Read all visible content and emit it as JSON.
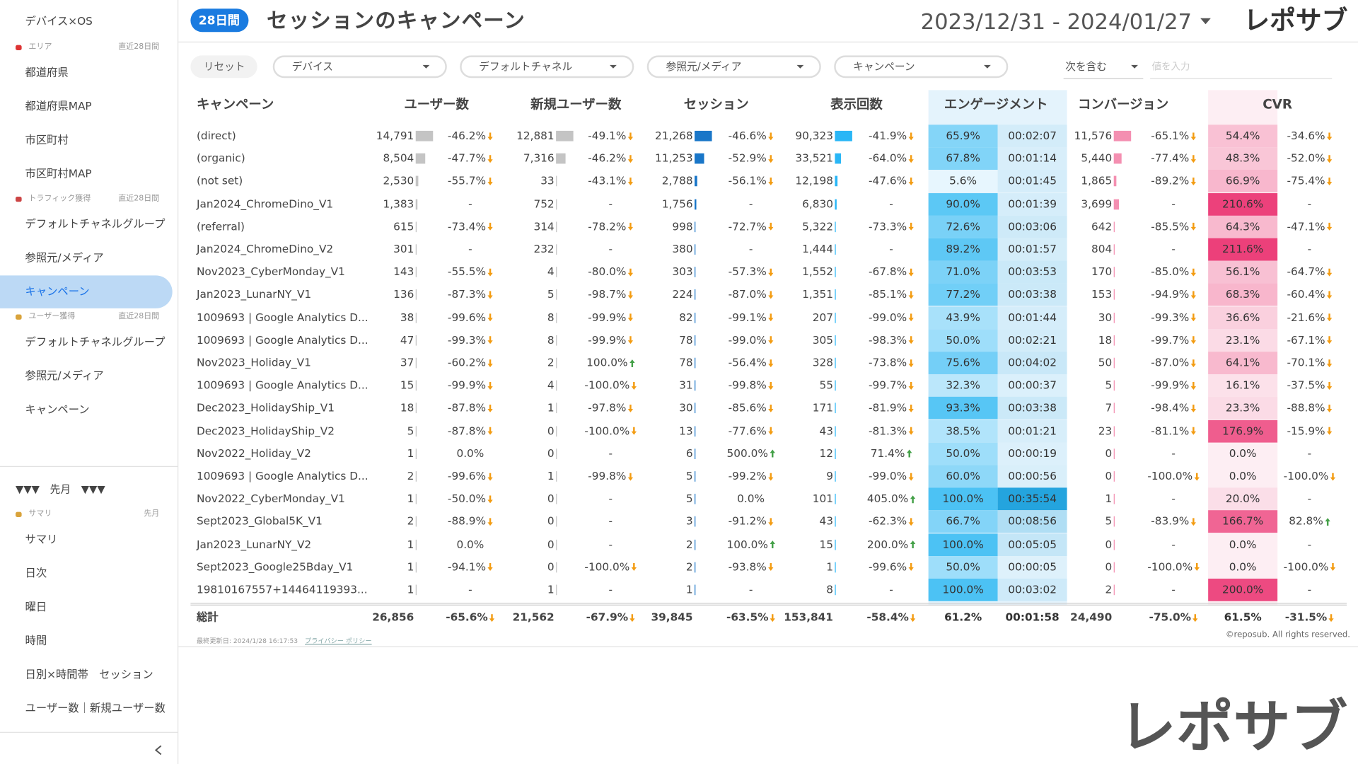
{
  "sidebar": {
    "top_items": [
      "デバイス×OS"
    ],
    "sections": [
      {
        "label": "エリア",
        "period": "直近28日間",
        "items": [
          "都道府県",
          "都道府県MAP",
          "市区町村",
          "市区町村MAP"
        ]
      },
      {
        "label": "トラフィック獲得",
        "period": "直近28日間",
        "items": [
          "デフォルトチャネルグループ",
          "参照元/メディア",
          "キャンペーン"
        ]
      },
      {
        "label": "ユーザー獲得",
        "period": "直近28日間",
        "items": [
          "デフォルトチャネルグループ",
          "参照元/メディア",
          "キャンペーン"
        ]
      }
    ],
    "divider": "▼▼▼　先月　▼▼▼",
    "last_month_sections": [
      {
        "label": "サマリ",
        "period": "先月",
        "items": [
          "サマリ",
          "日次",
          "曜日",
          "時間",
          "日別×時間帯　セッション",
          "ユーザー数｜新規ユーザー数"
        ]
      }
    ]
  },
  "header": {
    "badge": "28日間",
    "title": "セッションのキャンペーン",
    "date_range": "2023/12/31 - 2024/01/27",
    "logo": "レポサブ"
  },
  "filters": {
    "reset": "リセット",
    "dropdowns": [
      "デバイス",
      "デフォルトチャネル",
      "参照元/メディア",
      "キャンペーン"
    ],
    "match": "次を含む",
    "placeholder": "値を入力"
  },
  "table": {
    "headers": [
      "キャンペーン",
      "ユーザー数",
      "新規ユーザー数",
      "セッション",
      "表示回数",
      "エンゲージメント",
      "コンバージョン",
      "CVR"
    ],
    "rows": [
      [
        "(direct)",
        "14,791",
        "-46.2%",
        "12,881",
        "-49.1%",
        "21,268",
        "-46.6%",
        "90,323",
        "-41.9%",
        "65.9%",
        "00:02:07",
        "11,576",
        "-65.1%",
        "54.4%",
        "-34.6%"
      ],
      [
        "(organic)",
        "8,504",
        "-47.7%",
        "7,316",
        "-46.2%",
        "11,253",
        "-52.9%",
        "33,521",
        "-64.0%",
        "67.8%",
        "00:01:14",
        "5,440",
        "-77.4%",
        "48.3%",
        "-52.0%"
      ],
      [
        "(not set)",
        "2,530",
        "-55.7%",
        "33",
        "-43.1%",
        "2,788",
        "-56.1%",
        "12,198",
        "-47.6%",
        "5.6%",
        "00:01:45",
        "1,865",
        "-89.2%",
        "66.9%",
        "-75.4%"
      ],
      [
        "Jan2024_ChromeDino_V1",
        "1,383",
        "-",
        "752",
        "-",
        "1,756",
        "-",
        "6,830",
        "-",
        "90.0%",
        "00:01:39",
        "3,699",
        "-",
        "210.6%",
        "-"
      ],
      [
        "(referral)",
        "615",
        "-73.4%",
        "314",
        "-78.2%",
        "998",
        "-72.7%",
        "5,322",
        "-73.3%",
        "72.6%",
        "00:03:06",
        "642",
        "-85.5%",
        "64.3%",
        "-47.1%"
      ],
      [
        "Jan2024_ChromeDino_V2",
        "301",
        "-",
        "232",
        "-",
        "380",
        "-",
        "1,444",
        "-",
        "89.2%",
        "00:01:57",
        "804",
        "-",
        "211.6%",
        "-"
      ],
      [
        "Nov2023_CyberMonday_V1",
        "143",
        "-55.5%",
        "4",
        "-80.0%",
        "303",
        "-57.3%",
        "1,552",
        "-67.8%",
        "71.0%",
        "00:03:53",
        "170",
        "-85.0%",
        "56.1%",
        "-64.7%"
      ],
      [
        "Jan2023_LunarNY_V1",
        "136",
        "-87.3%",
        "5",
        "-98.7%",
        "224",
        "-87.0%",
        "1,351",
        "-85.1%",
        "77.2%",
        "00:03:38",
        "153",
        "-94.9%",
        "68.3%",
        "-60.4%"
      ],
      [
        "1009693 | Google Analytics D...",
        "38",
        "-99.6%",
        "8",
        "-99.9%",
        "82",
        "-99.1%",
        "207",
        "-99.0%",
        "43.9%",
        "00:01:44",
        "30",
        "-99.3%",
        "36.6%",
        "-21.6%"
      ],
      [
        "1009693 | Google Analytics D...",
        "47",
        "-99.3%",
        "8",
        "-99.9%",
        "78",
        "-99.0%",
        "305",
        "-98.3%",
        "50.0%",
        "00:02:21",
        "18",
        "-99.7%",
        "23.1%",
        "-67.1%"
      ],
      [
        "Nov2023_Holiday_V1",
        "37",
        "-60.2%",
        "2",
        "100.0%",
        "78",
        "-56.4%",
        "328",
        "-73.8%",
        "75.6%",
        "00:04:02",
        "50",
        "-87.0%",
        "64.1%",
        "-70.1%"
      ],
      [
        "1009693 | Google Analytics D...",
        "15",
        "-99.9%",
        "4",
        "-100.0%",
        "31",
        "-99.8%",
        "55",
        "-99.7%",
        "32.3%",
        "00:00:37",
        "5",
        "-99.9%",
        "16.1%",
        "-37.5%"
      ],
      [
        "Dec2023_HolidayShip_V1",
        "18",
        "-87.8%",
        "1",
        "-97.8%",
        "30",
        "-85.6%",
        "171",
        "-81.9%",
        "93.3%",
        "00:03:38",
        "7",
        "-98.4%",
        "23.3%",
        "-88.8%"
      ],
      [
        "Dec2023_HolidayShip_V2",
        "5",
        "-87.8%",
        "0",
        "-100.0%",
        "13",
        "-77.6%",
        "43",
        "-81.3%",
        "38.5%",
        "00:01:21",
        "23",
        "-81.1%",
        "176.9%",
        "-15.9%"
      ],
      [
        "Nov2022_Holiday_V2",
        "1",
        "0.0%",
        "0",
        "-",
        "6",
        "500.0%",
        "12",
        "71.4%",
        "50.0%",
        "00:00:19",
        "0",
        "-",
        "0.0%",
        "-"
      ],
      [
        "1009693 | Google Analytics D...",
        "2",
        "-99.6%",
        "1",
        "-99.8%",
        "5",
        "-99.2%",
        "9",
        "-99.0%",
        "60.0%",
        "00:00:56",
        "0",
        "-100.0%",
        "0.0%",
        "-100.0%"
      ],
      [
        "Nov2022_CyberMonday_V1",
        "1",
        "-50.0%",
        "0",
        "-",
        "5",
        "0.0%",
        "101",
        "405.0%",
        "100.0%",
        "00:35:54",
        "1",
        "-",
        "20.0%",
        "-"
      ],
      [
        "Sept2023_Global5K_V1",
        "2",
        "-88.9%",
        "0",
        "-",
        "3",
        "-91.2%",
        "43",
        "-62.3%",
        "66.7%",
        "00:08:56",
        "5",
        "-83.9%",
        "166.7%",
        "82.8%"
      ],
      [
        "Jan2023_LunarNY_V2",
        "1",
        "0.0%",
        "0",
        "-",
        "2",
        "100.0%",
        "15",
        "200.0%",
        "100.0%",
        "00:05:05",
        "0",
        "-",
        "0.0%",
        "-"
      ],
      [
        "Sept2023_Google25Bday_V1",
        "1",
        "-94.1%",
        "0",
        "-100.0%",
        "2",
        "-93.8%",
        "1",
        "-99.6%",
        "50.0%",
        "00:00:05",
        "0",
        "-100.0%",
        "0.0%",
        "-100.0%"
      ],
      [
        "19810167557+14464119393...",
        "1",
        "-",
        "1",
        "-",
        "1",
        "-",
        "8",
        "-",
        "100.0%",
        "00:03:02",
        "2",
        "-",
        "200.0%",
        "-"
      ]
    ],
    "total": [
      "総計",
      "26,856",
      "-65.6%",
      "21,562",
      "-67.9%",
      "39,845",
      "-63.5%",
      "153,841",
      "-58.4%",
      "61.2%",
      "00:01:58",
      "24,490",
      "-75.0%",
      "61.5%",
      "-31.5%"
    ]
  },
  "footer": {
    "updated": "最終更新日: 2024/1/28 16:17:53",
    "privacy": "プライバシー ポリシー",
    "copyright": "©reposub. All rights reserved."
  },
  "watermark": "レポサブ"
}
